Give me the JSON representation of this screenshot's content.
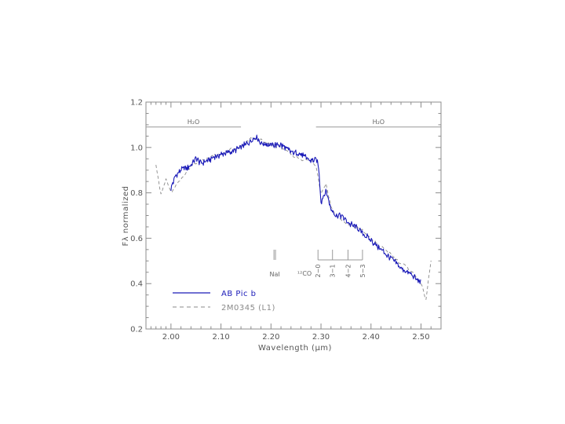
{
  "chart_data": {
    "type": "line",
    "xlabel": "Wavelength (μm)",
    "ylabel": "Fλ normalized",
    "xlim": [
      1.95,
      2.54
    ],
    "ylim": [
      0.2,
      1.2
    ],
    "xticks": [
      "2.00",
      "2.10",
      "2.20",
      "2.30",
      "2.40",
      "2.50"
    ],
    "yticks": [
      "0.2",
      "0.4",
      "0.6",
      "0.8",
      "1.0",
      "1.2"
    ],
    "grid": false,
    "legend": "bottom-left",
    "series": [
      {
        "name": "AB Pic b",
        "color": "#1a1ab8",
        "style": "solid",
        "x": [
          2.0,
          2.01,
          2.02,
          2.03,
          2.04,
          2.05,
          2.06,
          2.08,
          2.1,
          2.12,
          2.14,
          2.16,
          2.17,
          2.18,
          2.2,
          2.22,
          2.24,
          2.26,
          2.28,
          2.29,
          2.295,
          2.3,
          2.31,
          2.32,
          2.33,
          2.34,
          2.35,
          2.36,
          2.37,
          2.38,
          2.39,
          2.4,
          2.41,
          2.42,
          2.43,
          2.44,
          2.45,
          2.46,
          2.47,
          2.48,
          2.49,
          2.5
        ],
        "y": [
          0.82,
          0.88,
          0.9,
          0.91,
          0.92,
          0.95,
          0.93,
          0.95,
          0.97,
          0.98,
          1.0,
          1.03,
          1.05,
          1.02,
          1.01,
          1.01,
          0.98,
          0.97,
          0.94,
          0.95,
          0.92,
          0.76,
          0.81,
          0.73,
          0.7,
          0.7,
          0.68,
          0.66,
          0.65,
          0.63,
          0.61,
          0.59,
          0.57,
          0.55,
          0.53,
          0.51,
          0.49,
          0.47,
          0.45,
          0.44,
          0.42,
          0.41
        ]
      },
      {
        "name": "2M0345 (L1)",
        "color": "#8a8a8a",
        "style": "dashed",
        "x": [
          1.97,
          1.98,
          1.99,
          2.0,
          2.02,
          2.04,
          2.06,
          2.08,
          2.1,
          2.12,
          2.14,
          2.16,
          2.18,
          2.2,
          2.22,
          2.24,
          2.26,
          2.28,
          2.29,
          2.3,
          2.31,
          2.32,
          2.33,
          2.34,
          2.36,
          2.38,
          2.4,
          2.42,
          2.44,
          2.46,
          2.48,
          2.5,
          2.51,
          2.52
        ],
        "y": [
          0.93,
          0.79,
          0.86,
          0.8,
          0.86,
          0.92,
          0.94,
          0.96,
          0.97,
          0.99,
          1.0,
          1.04,
          1.03,
          1.01,
          1.0,
          0.97,
          0.95,
          0.94,
          0.92,
          0.8,
          0.84,
          0.74,
          0.7,
          0.68,
          0.65,
          0.64,
          0.6,
          0.56,
          0.53,
          0.49,
          0.46,
          0.4,
          0.33,
          0.5
        ]
      }
    ],
    "annotations": {
      "h2o_left": {
        "label": "H₂O",
        "x_range": [
          1.95,
          2.14
        ],
        "y": 1.09
      },
      "h2o_right": {
        "label": "H₂O",
        "x_range": [
          2.29,
          2.54
        ],
        "y": 1.09
      },
      "nai": {
        "label": "NaI",
        "x": [
          2.206,
          2.209
        ]
      },
      "co": {
        "label": "¹²CO",
        "bands": [
          {
            "label": "2−0",
            "x": 2.294
          },
          {
            "label": "3−1",
            "x": 2.323
          },
          {
            "label": "4−2",
            "x": 2.354
          },
          {
            "label": "5−3",
            "x": 2.383
          }
        ]
      }
    }
  }
}
